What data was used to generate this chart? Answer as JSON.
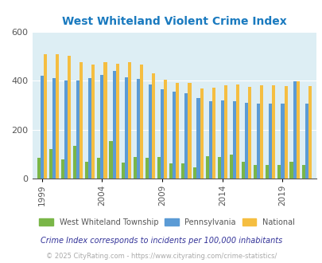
{
  "title": "West Whiteland Violent Crime Index",
  "title_color": "#1a7abf",
  "years": [
    1999,
    2000,
    2001,
    2002,
    2003,
    2004,
    2005,
    2006,
    2007,
    2008,
    2009,
    2010,
    2011,
    2012,
    2013,
    2014,
    2015,
    2016,
    2017,
    2018,
    2019,
    2020,
    2021
  ],
  "west_whiteland": [
    85,
    120,
    80,
    135,
    70,
    85,
    155,
    65,
    88,
    85,
    88,
    62,
    62,
    48,
    92,
    90,
    100,
    70,
    55,
    55,
    55,
    70,
    55
  ],
  "pennsylvania": [
    420,
    410,
    400,
    400,
    410,
    425,
    440,
    415,
    408,
    385,
    365,
    355,
    348,
    328,
    315,
    320,
    315,
    310,
    305,
    305,
    305,
    398,
    306
  ],
  "national": [
    508,
    508,
    500,
    475,
    465,
    475,
    470,
    475,
    465,
    430,
    405,
    390,
    390,
    367,
    373,
    380,
    385,
    375,
    380,
    380,
    379,
    398,
    379
  ],
  "bar_colors": [
    "#7ab648",
    "#5b9bd5",
    "#f5be41"
  ],
  "bg_color": "#ddeef4",
  "fig_bg_color": "#ffffff",
  "ylim": [
    0,
    600
  ],
  "yticks": [
    0,
    200,
    400,
    600
  ],
  "legend_labels": [
    "West Whiteland Township",
    "Pennsylvania",
    "National"
  ],
  "note": "Crime Index corresponds to incidents per 100,000 inhabitants",
  "note_color": "#333399",
  "footer": "© 2025 CityRating.com - https://www.cityrating.com/crime-statistics/",
  "footer_color": "#aaaaaa",
  "xlabel_ticks": [
    1999,
    2004,
    2009,
    2014,
    2019
  ],
  "grid_color": "#ffffff",
  "tick_label_color": "#555555"
}
